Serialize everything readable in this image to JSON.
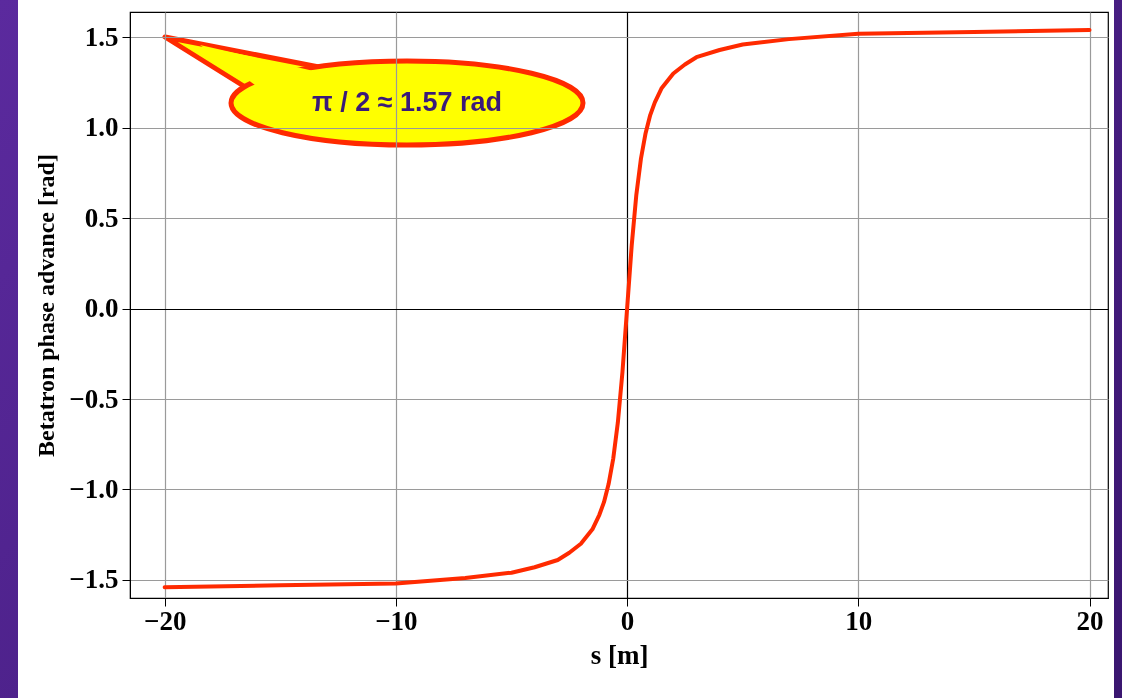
{
  "chart_data": {
    "type": "line",
    "xlabel": "s [m]",
    "ylabel": "Betatron phase advance [rad]",
    "x": [
      -20,
      -15,
      -10,
      -7,
      -5,
      -4,
      -3,
      -2.5,
      -2,
      -1.5,
      -1.2,
      -1,
      -0.8,
      -0.6,
      -0.4,
      -0.2,
      0,
      0.2,
      0.4,
      0.6,
      0.8,
      1,
      1.2,
      1.5,
      2,
      2.5,
      3,
      4,
      5,
      7,
      10,
      15,
      20
    ],
    "series": [
      {
        "color": "#ff2a00",
        "values": [
          -1.54,
          -1.53,
          -1.52,
          -1.49,
          -1.46,
          -1.43,
          -1.39,
          -1.35,
          -1.3,
          -1.22,
          -1.14,
          -1.07,
          -0.97,
          -0.83,
          -0.63,
          -0.35,
          0,
          0.35,
          0.63,
          0.83,
          0.97,
          1.07,
          1.14,
          1.22,
          1.3,
          1.35,
          1.39,
          1.43,
          1.46,
          1.49,
          1.52,
          1.53,
          1.54
        ]
      }
    ],
    "xlim": [
      -21.5,
      20.8
    ],
    "ylim": [
      -1.6,
      1.64
    ],
    "xticks": [
      {
        "value": -20,
        "label": "−20"
      },
      {
        "value": -10,
        "label": "−10"
      },
      0,
      10,
      20
    ],
    "yticks": [
      {
        "value": -1.5,
        "label": "−1.5"
      },
      {
        "value": -1,
        "label": "−1.0"
      },
      {
        "value": -0.5,
        "label": "−0.5"
      },
      {
        "value": 0,
        "label": "0.0"
      },
      0.5,
      {
        "value": 1,
        "label": "1.0"
      },
      1.5
    ],
    "grid": true,
    "marker": "none",
    "line_style": "solid",
    "annotations": [
      "π / 2 ≈ 1.57 rad"
    ]
  }
}
